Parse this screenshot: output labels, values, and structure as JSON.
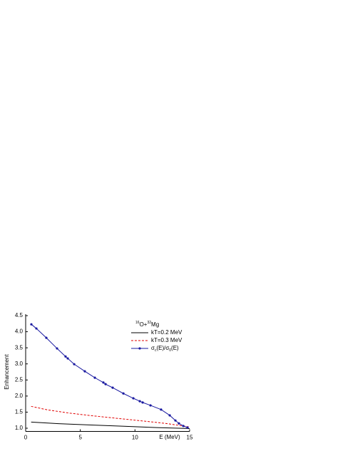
{
  "chart_data": {
    "type": "line",
    "title": "16O+32Mg",
    "xlabel": "E (MeV)",
    "ylabel": "Enhancement",
    "xlim": [
      0,
      15
    ],
    "ylim": [
      0.9,
      4.5
    ],
    "xticks": [
      0,
      5,
      10,
      15
    ],
    "yticks": [
      {
        "value": 1.0,
        "label": "1.0"
      },
      {
        "value": 1.5,
        "label": "1.5"
      },
      {
        "value": 2.0,
        "label": "2.0"
      },
      {
        "value": 2.5,
        "label": "2.5"
      },
      {
        "value": 3.0,
        "label": "3.0"
      },
      {
        "value": 3.5,
        "label": "3.5"
      },
      {
        "value": 4.0,
        "label": "4.0"
      },
      {
        "value": 4.5,
        "label": "4.5"
      }
    ],
    "series": [
      {
        "name": "kT=0.2 MeV",
        "color": "#000000",
        "dash": false,
        "markers": false,
        "x": [
          0.5,
          3,
          6,
          9,
          12,
          14,
          15
        ],
        "values": [
          1.19,
          1.14,
          1.1,
          1.06,
          1.02,
          1.0,
          0.99
        ]
      },
      {
        "name": "kT=0.3 MeV",
        "color": "#e00000",
        "dash": true,
        "markers": false,
        "x": [
          0.5,
          2,
          4,
          6,
          8,
          10,
          12,
          13,
          14,
          15
        ],
        "values": [
          1.68,
          1.57,
          1.47,
          1.39,
          1.32,
          1.25,
          1.18,
          1.14,
          1.09,
          1.04
        ]
      },
      {
        "name": "σc(E)/σ0(E)",
        "color": "#1a1aa0",
        "dash": false,
        "markers": true,
        "x": [
          0.52,
          0.98,
          1.89,
          2.87,
          3.65,
          3.85,
          4.44,
          5.41,
          6.33,
          7.11,
          7.31,
          7.96,
          8.94,
          9.85,
          10.44,
          10.7,
          11.42,
          12.39,
          13.18,
          13.7,
          14.02,
          14.42,
          14.81
        ],
        "values": [
          4.23,
          4.1,
          3.81,
          3.48,
          3.23,
          3.17,
          2.99,
          2.77,
          2.57,
          2.42,
          2.37,
          2.26,
          2.08,
          1.93,
          1.84,
          1.8,
          1.71,
          1.58,
          1.4,
          1.24,
          1.15,
          1.07,
          1.02
        ]
      }
    ]
  }
}
